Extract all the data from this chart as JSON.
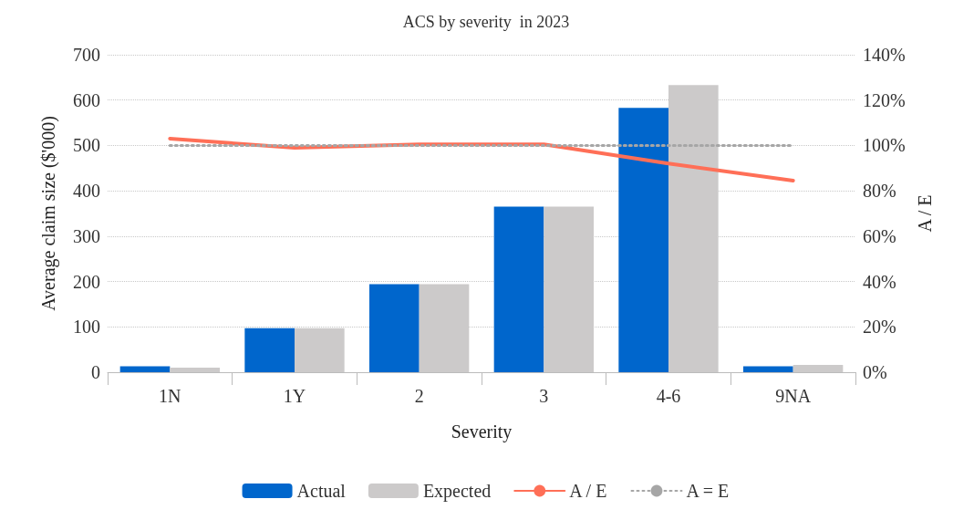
{
  "chart_data": {
    "type": "bar",
    "title": "ACS by severity  in 2023",
    "xlabel": "Severity",
    "ylabel": "Average claim size ($'000)",
    "y2label": "A / E",
    "categories": [
      "1N",
      "1Y",
      "2",
      "3",
      "4-6",
      "9NA"
    ],
    "series": [
      {
        "name": "Actual",
        "color": "#0066cc",
        "values": [
          13,
          97,
          194,
          365,
          583,
          13
        ]
      },
      {
        "name": "Expected",
        "color": "#cccaca",
        "values": [
          10,
          97,
          194,
          365,
          633,
          16
        ]
      },
      {
        "name": "A / E",
        "type": "line",
        "axis": "y2",
        "color": "#ff6f57",
        "marker": "none",
        "line_style": "solid",
        "values": [
          103,
          99,
          100.5,
          100.5,
          92,
          84.5
        ]
      },
      {
        "name": "A = E",
        "type": "line",
        "axis": "y2",
        "color": "#a6a6a6",
        "marker": "none",
        "line_style": "dotted",
        "values": [
          100,
          100,
          100,
          100,
          100,
          100
        ]
      }
    ],
    "ylim": [
      0,
      700
    ],
    "yticks": [
      0,
      100,
      200,
      300,
      400,
      500,
      600,
      700
    ],
    "y2lim": [
      0,
      140
    ],
    "y2ticks": [
      {
        "value": 0,
        "label": "0%"
      },
      {
        "value": 20,
        "label": "20%"
      },
      {
        "value": 40,
        "label": "40%"
      },
      {
        "value": 60,
        "label": "60%"
      },
      {
        "value": 80,
        "label": "80%"
      },
      {
        "value": 100,
        "label": "100%"
      },
      {
        "value": 120,
        "label": "120%"
      },
      {
        "value": 140,
        "label": "140%"
      }
    ],
    "grid": "y",
    "legend": "bottom"
  }
}
